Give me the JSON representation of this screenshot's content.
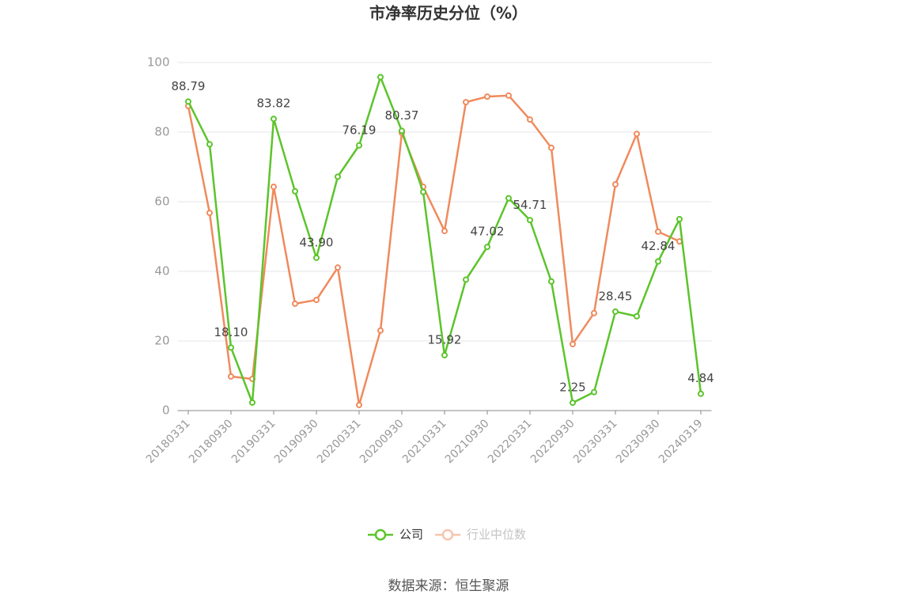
{
  "chart_data": {
    "type": "line",
    "title": "市净率历史分位（%）",
    "source": "数据来源：恒生聚源",
    "categories": [
      "20180331",
      null,
      "20180930",
      null,
      "20190331",
      null,
      "20190930",
      null,
      "20200331",
      null,
      "20200930",
      null,
      "20210331",
      null,
      "20210930",
      null,
      "20220331",
      null,
      "20220930",
      null,
      "20230331",
      null,
      "20230930",
      null,
      "20240319"
    ],
    "ylim": [
      0,
      100
    ],
    "yticks": [
      0,
      20,
      40,
      60,
      80,
      100
    ],
    "grid": true,
    "legend": "bottom",
    "series": [
      {
        "name": "公司",
        "color": "#5cc42b",
        "values": [
          88.79,
          76.5,
          18.1,
          2.3,
          83.82,
          63,
          43.9,
          67.2,
          76.19,
          95.8,
          80.37,
          62.8,
          15.92,
          37.6,
          47.02,
          61,
          54.71,
          37.1,
          2.25,
          5.3,
          28.45,
          27.1,
          42.84,
          55,
          4.84
        ],
        "value_labels": [
          "88.79",
          null,
          "18.10",
          null,
          "83.82",
          null,
          "43.90",
          null,
          "76.19",
          null,
          "80.37",
          null,
          "15.92",
          null,
          "47.02",
          null,
          "54.71",
          null,
          "2.25",
          null,
          "28.45",
          null,
          "42.84",
          null,
          "4.84"
        ]
      },
      {
        "name": "行业中位数",
        "color": "#f08a5d",
        "values": [
          87.5,
          56.8,
          9.8,
          9.1,
          64.3,
          30.7,
          31.8,
          41.1,
          1.6,
          23,
          79.8,
          64.3,
          51.6,
          88.6,
          90.2,
          90.5,
          83.6,
          75.5,
          19.1,
          28,
          65,
          79.5,
          51.4,
          48.6,
          null
        ]
      }
    ]
  }
}
